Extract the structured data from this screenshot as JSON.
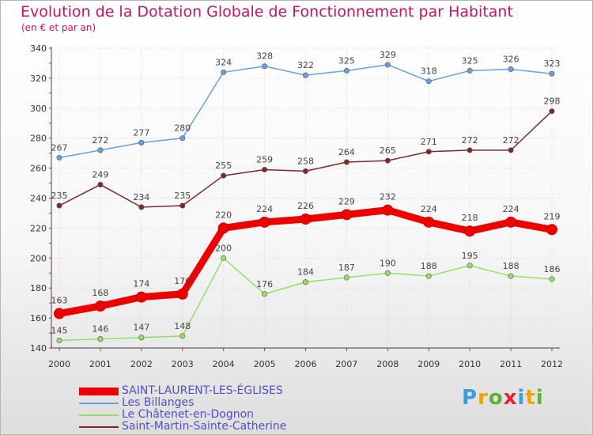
{
  "title": "Evolution de la Dotation Globale de Fonctionnement par Habitant",
  "subtitle": "(en € et par an)",
  "logo": {
    "text": "Proxiti",
    "letters": [
      "P",
      "r",
      "o",
      "x",
      "i",
      "t",
      "i"
    ],
    "colors": [
      "#3aa0dc",
      "#f5a300",
      "#5cb531",
      "#e8232a",
      "#3aa0dc",
      "#f5a300",
      "#5cb531"
    ]
  },
  "chart_data": {
    "type": "line",
    "title": "Evolution de la Dotation Globale de Fonctionnement par Habitant",
    "ylabel": "(en € et par an)",
    "x": [
      "2000",
      "2001",
      "2002",
      "2003",
      "2004",
      "2005",
      "2006",
      "2007",
      "2008",
      "2009",
      "2010",
      "2011",
      "2012"
    ],
    "ylim": [
      140,
      340
    ],
    "yticks": [
      140,
      160,
      180,
      200,
      220,
      240,
      260,
      280,
      300,
      320,
      340
    ],
    "grid": true,
    "series": [
      {
        "name": "SAINT-LAURENT-LES-ÉGLISES",
        "color": "#ee0000",
        "values": [
          163,
          168,
          174,
          176,
          220,
          224,
          226,
          229,
          232,
          224,
          218,
          224,
          219
        ]
      },
      {
        "name": "Les Billanges",
        "color": "#6a9fd8",
        "values": [
          267,
          272,
          277,
          280,
          324,
          328,
          322,
          325,
          329,
          318,
          325,
          326,
          323
        ]
      },
      {
        "name": "Le Châtenet-en-Dognon",
        "color": "#99dd66",
        "values": [
          145,
          146,
          147,
          148,
          200,
          176,
          184,
          187,
          190,
          188,
          195,
          188,
          186
        ]
      },
      {
        "name": "Saint-Martin-Sainte-Catherine",
        "color": "#7a2a2a",
        "values": [
          235,
          249,
          234,
          235,
          255,
          259,
          258,
          264,
          265,
          271,
          272,
          272,
          298
        ]
      }
    ]
  }
}
